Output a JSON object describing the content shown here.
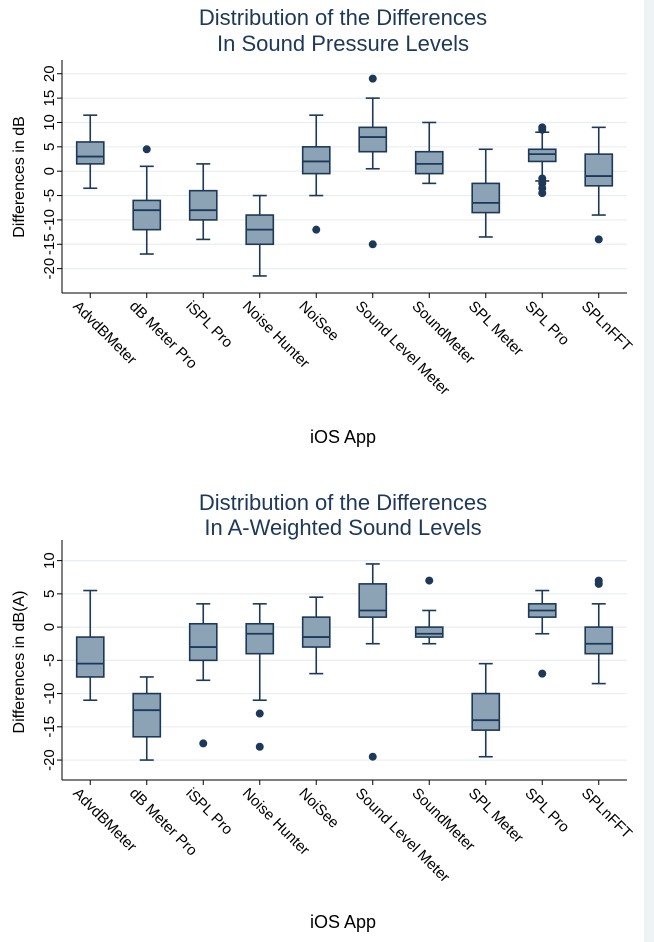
{
  "chart_data": [
    {
      "type": "box",
      "title": "Distribution of the Differences",
      "subtitle": "In Sound Pressure Levels",
      "xlabel": "iOS App",
      "ylabel": "Differences in dB",
      "ylim": [
        -25,
        22
      ],
      "yticks": [
        -20,
        -15,
        -10,
        -5,
        0,
        5,
        10,
        15,
        20
      ],
      "ytick_labels": [
        "-20",
        "-15",
        "-10",
        "-5",
        "0",
        "5",
        "10",
        "15",
        "20"
      ],
      "categories": [
        "AdvdBMeter",
        "dB Meter Pro",
        "iSPL Pro",
        "Noise Hunter",
        "NoiSee",
        "Sound Level Meter",
        "SoundMeter",
        "SPL Meter",
        "SPL Pro",
        "SPLnFFT"
      ],
      "boxes": [
        {
          "q1": 1.5,
          "median": 3,
          "q3": 6,
          "whisker_low": -3.5,
          "whisker_high": 11.5,
          "outliers": []
        },
        {
          "q1": -12,
          "median": -8,
          "q3": -6,
          "whisker_low": -17,
          "whisker_high": 1,
          "outliers": [
            4.5
          ]
        },
        {
          "q1": -10,
          "median": -8,
          "q3": -4,
          "whisker_low": -14,
          "whisker_high": 1.5,
          "outliers": []
        },
        {
          "q1": -15,
          "median": -12,
          "q3": -9,
          "whisker_low": -21.5,
          "whisker_high": -5,
          "outliers": []
        },
        {
          "q1": -0.5,
          "median": 2,
          "q3": 5,
          "whisker_low": -5,
          "whisker_high": 11.5,
          "outliers": [
            -12
          ]
        },
        {
          "q1": 4,
          "median": 7,
          "q3": 9,
          "whisker_low": 0.5,
          "whisker_high": 15,
          "outliers": [
            19,
            -15
          ]
        },
        {
          "q1": -0.5,
          "median": 1.5,
          "q3": 4,
          "whisker_low": -2.5,
          "whisker_high": 10,
          "outliers": []
        },
        {
          "q1": -8.5,
          "median": -6.5,
          "q3": -2.5,
          "whisker_low": -13.5,
          "whisker_high": 4.5,
          "outliers": []
        },
        {
          "q1": 2,
          "median": 3.5,
          "q3": 4.5,
          "whisker_low": -2,
          "whisker_high": 8,
          "outliers": [
            8.5,
            9,
            -1.5,
            -2.5,
            -3.5,
            -4.5
          ]
        },
        {
          "q1": -3,
          "median": -1,
          "q3": 3.5,
          "whisker_low": -9,
          "whisker_high": 9,
          "outliers": [
            -14
          ]
        }
      ]
    },
    {
      "type": "box",
      "title": "Distribution of the Differences",
      "subtitle": "In A-Weighted Sound Levels",
      "xlabel": "iOS App",
      "ylabel": "Differences in dB(A)",
      "ylim": [
        -23,
        12.5
      ],
      "yticks": [
        -20,
        -15,
        -10,
        -5,
        0,
        5,
        10
      ],
      "ytick_labels": [
        "-20",
        "-15",
        "-10",
        "-5",
        "0",
        "5",
        "10"
      ],
      "categories": [
        "AdvdBMeter",
        "dB Meter Pro",
        "iSPL Pro",
        "Noise Hunter",
        "NoiSee",
        "Sound Level Meter",
        "SoundMeter",
        "SPL Meter",
        "SPL Pro",
        "SPLnFFT"
      ],
      "boxes": [
        {
          "q1": -7.5,
          "median": -5.5,
          "q3": -1.5,
          "whisker_low": -11,
          "whisker_high": 5.5,
          "outliers": []
        },
        {
          "q1": -16.5,
          "median": -12.5,
          "q3": -10,
          "whisker_low": -20,
          "whisker_high": -7.5,
          "outliers": []
        },
        {
          "q1": -5,
          "median": -3,
          "q3": 0.5,
          "whisker_low": -8,
          "whisker_high": 3.5,
          "outliers": [
            -17.5
          ]
        },
        {
          "q1": -4,
          "median": -1,
          "q3": 0.5,
          "whisker_low": -11,
          "whisker_high": 3.5,
          "outliers": [
            -13,
            -18
          ]
        },
        {
          "q1": -3,
          "median": -1.5,
          "q3": 1.5,
          "whisker_low": -7,
          "whisker_high": 4.5,
          "outliers": []
        },
        {
          "q1": 1.5,
          "median": 2.5,
          "q3": 6.5,
          "whisker_low": -2.5,
          "whisker_high": 9.5,
          "outliers": [
            -19.5
          ]
        },
        {
          "q1": -1.5,
          "median": -1,
          "q3": 0,
          "whisker_low": -2.5,
          "whisker_high": 2.5,
          "outliers": [
            7
          ]
        },
        {
          "q1": -15.5,
          "median": -14,
          "q3": -10,
          "whisker_low": -19.5,
          "whisker_high": -5.5,
          "outliers": []
        },
        {
          "q1": 1.5,
          "median": 2.5,
          "q3": 3.5,
          "whisker_low": -1,
          "whisker_high": 5.5,
          "outliers": [
            -7
          ]
        },
        {
          "q1": -4,
          "median": -2.5,
          "q3": 0,
          "whisker_low": -8.5,
          "whisker_high": 3.5,
          "outliers": [
            6.5,
            7
          ]
        }
      ]
    }
  ],
  "colors": {
    "box_fill": "#8ca3b5",
    "stroke": "#1d3858",
    "title": "#1d3858",
    "grid": "#e8eef1",
    "axis": "#000000"
  }
}
